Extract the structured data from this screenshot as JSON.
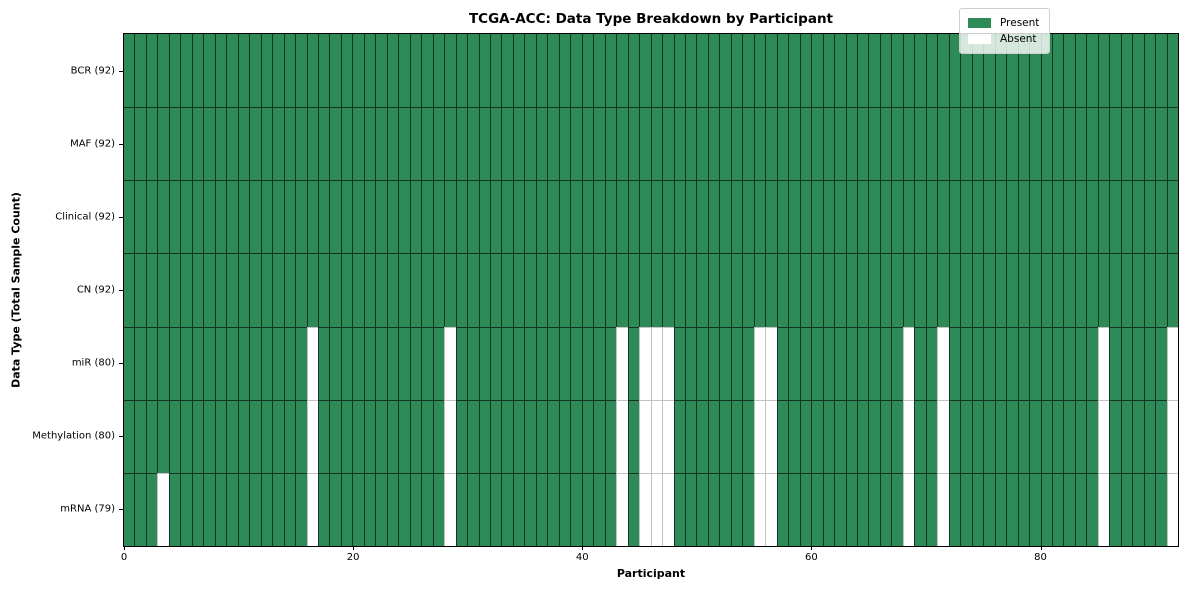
{
  "figure": {
    "background": "#ffffff"
  },
  "chart_data": {
    "type": "heatmap",
    "title": "TCGA-ACC: Data Type Breakdown by Participant",
    "xlabel": "Participant",
    "ylabel": "Data Type (Total Sample Count)",
    "x_range": [
      0,
      92
    ],
    "x_ticks": [
      0,
      20,
      40,
      60,
      80
    ],
    "n_participants": 92,
    "legend_position": "upper right",
    "legend": [
      {
        "label": "Present",
        "color": "#2e8b57"
      },
      {
        "label": "Absent",
        "color": "#ffffff"
      }
    ],
    "rows": [
      {
        "label": "BCR (92)",
        "data_type": "BCR",
        "present_count": 92,
        "absent_participants": []
      },
      {
        "label": "MAF (92)",
        "data_type": "MAF",
        "present_count": 92,
        "absent_participants": []
      },
      {
        "label": "Clinical (92)",
        "data_type": "Clinical",
        "present_count": 92,
        "absent_participants": []
      },
      {
        "label": "CN (92)",
        "data_type": "CN",
        "present_count": 92,
        "absent_participants": []
      },
      {
        "label": "miR (80)",
        "data_type": "miR",
        "present_count": 80,
        "absent_participants": [
          16,
          28,
          43,
          45,
          46,
          47,
          55,
          56,
          68,
          71,
          85,
          91
        ]
      },
      {
        "label": "Methylation (80)",
        "data_type": "Methylation",
        "present_count": 80,
        "absent_participants": [
          16,
          28,
          43,
          45,
          46,
          47,
          55,
          56,
          68,
          71,
          85,
          91
        ]
      },
      {
        "label": "mRNA (79)",
        "data_type": "mRNA",
        "present_count": 79,
        "absent_participants": [
          3,
          16,
          28,
          43,
          45,
          46,
          47,
          55,
          56,
          68,
          71,
          85,
          91
        ]
      }
    ]
  },
  "colors": {
    "present": "#2e8b57",
    "absent": "#ffffff",
    "cell_border_present": "rgba(0,0,0,0.62)",
    "cell_border_absent": "#c3c3c3",
    "axis": "#000000",
    "legend_background": "rgba(255,255,255,0.8)",
    "legend_border": "#cfcfcf"
  }
}
